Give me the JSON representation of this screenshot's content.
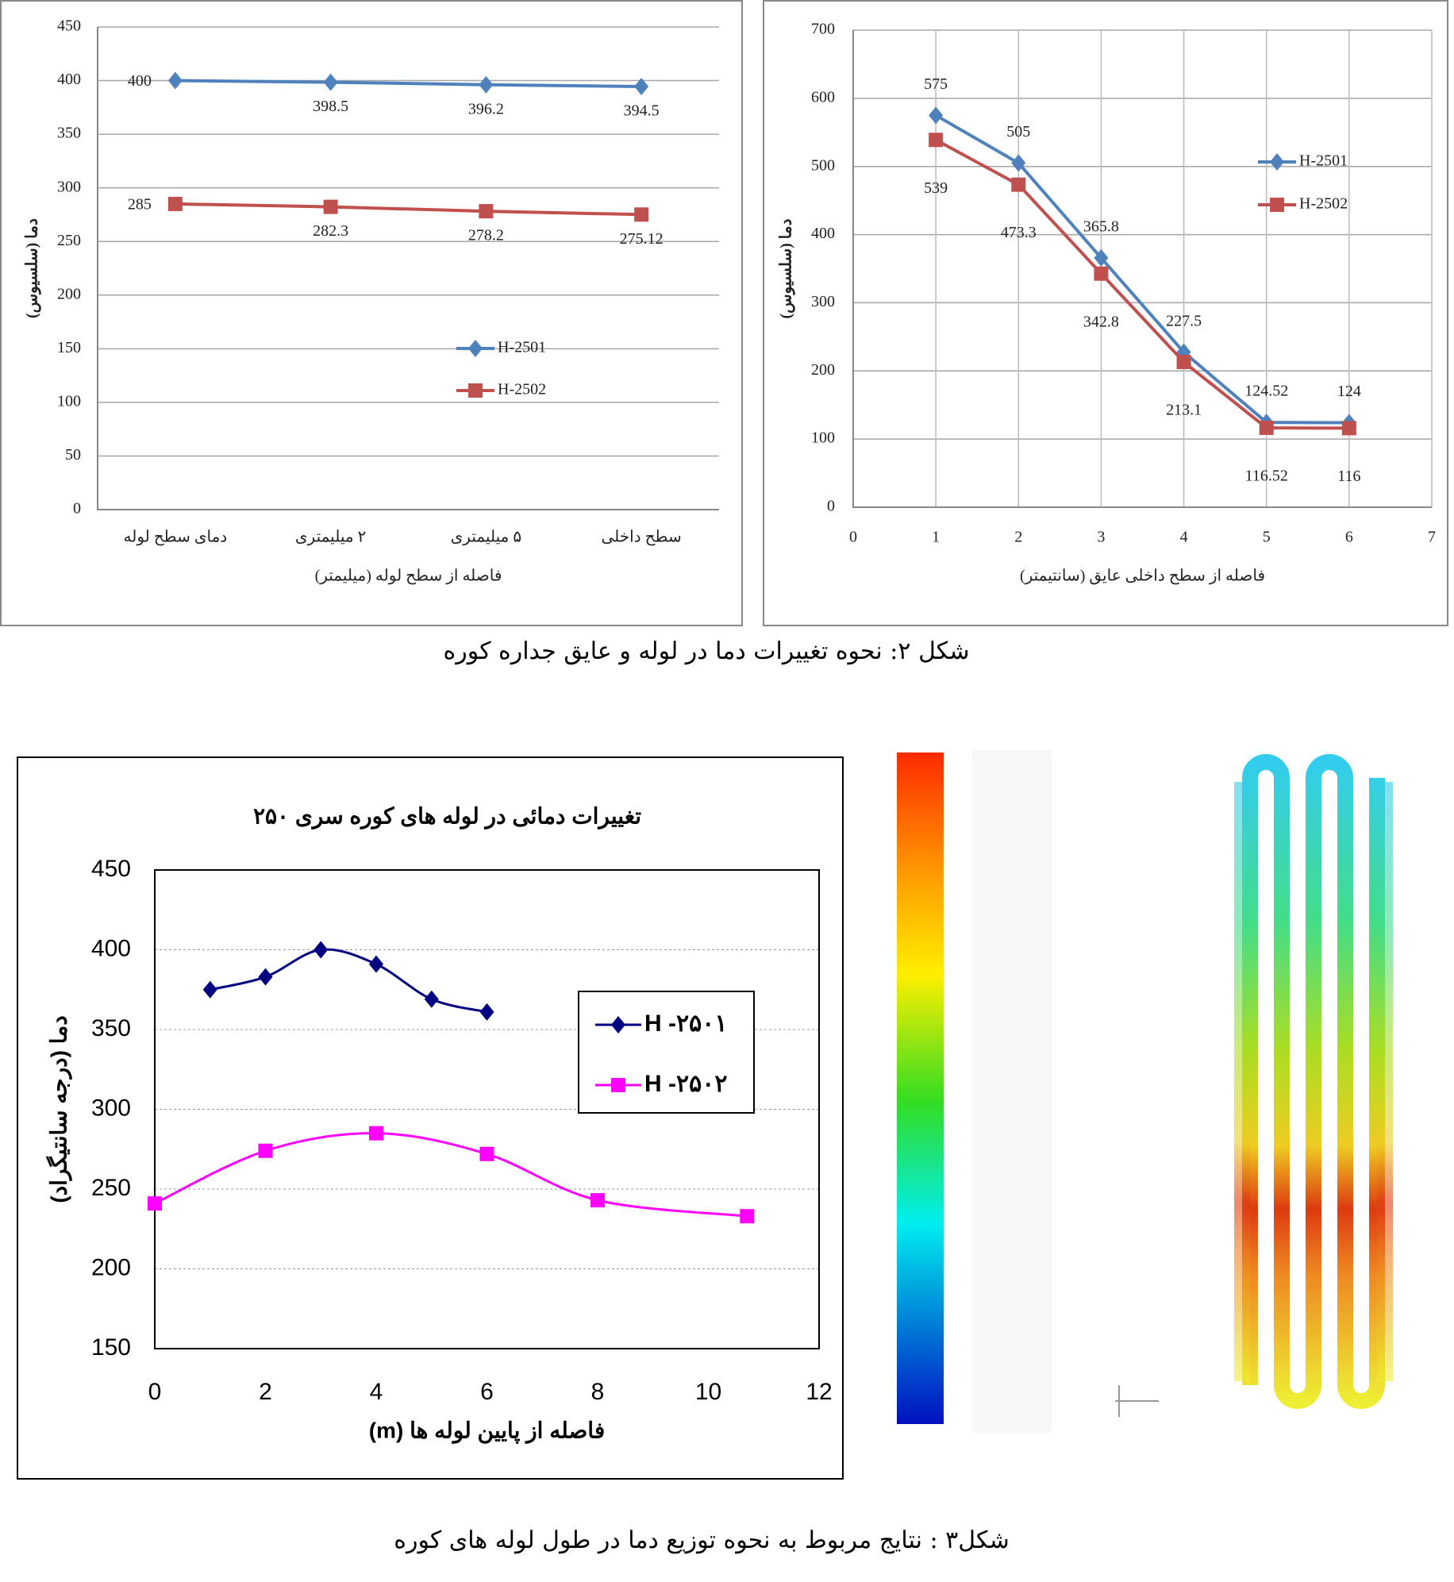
{
  "chart_data": [
    {
      "type": "line",
      "categories": [
        "دمای سطح لوله",
        "۲ میلیمتری",
        "۵ میلیمتری",
        "سطح داخلی"
      ],
      "series": [
        {
          "name": "H-2501",
          "color": "#4f81bd",
          "values": [
            400,
            398.5,
            396.2,
            394.5
          ]
        },
        {
          "name": "H-2502",
          "color": "#c0504d",
          "values": [
            285,
            282.3,
            278.2,
            275.12
          ]
        }
      ],
      "xlabel": "فاصله از سطح لوله (میلیمتر)",
      "ylabel": "دما (سلسیوس)",
      "ylim": [
        0,
        450
      ],
      "yticks": [
        0,
        50,
        100,
        150,
        200,
        250,
        300,
        350,
        400,
        450
      ],
      "grid": true,
      "legend": "center"
    },
    {
      "type": "line",
      "x": [
        1,
        2,
        3,
        4,
        5,
        6
      ],
      "series": [
        {
          "name": "H-2501",
          "color": "#4f81bd",
          "values": [
            575,
            505,
            365.8,
            227.5,
            124.52,
            124
          ]
        },
        {
          "name": "H-2502",
          "color": "#c0504d",
          "values": [
            539,
            473.3,
            342.8,
            213.1,
            116.52,
            116
          ]
        }
      ],
      "xlabel": "فاصله از سطح داخلی عایق (سانتیمتر)",
      "ylabel": "دما (سلسیوس)",
      "xlim": [
        0,
        7
      ],
      "xticks": [
        0,
        1,
        2,
        3,
        4,
        5,
        6,
        7
      ],
      "ylim": [
        0,
        700
      ],
      "yticks": [
        0,
        100,
        200,
        300,
        400,
        500,
        600,
        700
      ],
      "grid": true,
      "legend": "right"
    },
    {
      "type": "line",
      "title": "تغییرات دمائی در لوله های کوره سری ۲۵۰",
      "series": [
        {
          "name": "H -۲۵۰۱",
          "color": "#000080",
          "x": [
            1,
            2,
            3,
            4,
            5,
            6
          ],
          "values": [
            375,
            383,
            400,
            391,
            369,
            361
          ]
        },
        {
          "name": "H -۲۵۰۲",
          "color": "#ff00ff",
          "x": [
            0,
            2,
            4,
            6,
            8,
            10.7
          ],
          "values": [
            241,
            274,
            285,
            272,
            243,
            233
          ]
        }
      ],
      "xlabel": "فاصله از پایین لوله ها (m)",
      "ylabel": "دما (درجه سانتیگراد)",
      "xlim": [
        0,
        12
      ],
      "xticks": [
        0,
        2,
        4,
        6,
        8,
        10,
        12
      ],
      "ylim": [
        150,
        450
      ],
      "yticks": [
        150,
        200,
        250,
        300,
        350,
        400,
        450
      ],
      "grid": true,
      "smooth": true,
      "legend": "right"
    }
  ],
  "captions": [
    "شکل ۲: نحوه تغییرات دما در لوله و عایق جداره کوره",
    "شکل۳ : نتایج مربوط به نحوه توزیع دما در طول لوله های کوره"
  ]
}
